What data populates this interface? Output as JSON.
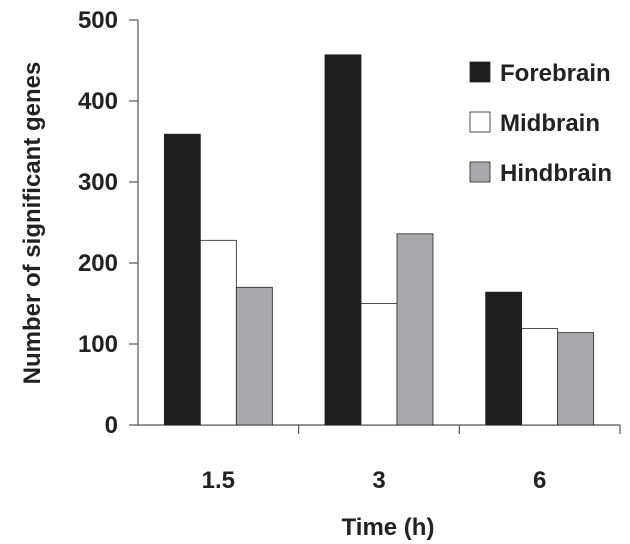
{
  "chart_data": {
    "type": "bar",
    "title": "",
    "xlabel": "Time (h)",
    "ylabel": "Number of significant genes",
    "categories": [
      "1.5",
      "3",
      "6"
    ],
    "ylim": [
      0,
      500
    ],
    "yticks": [
      0,
      100,
      200,
      300,
      400,
      500
    ],
    "grid": false,
    "legend_position": "top-right",
    "series": [
      {
        "name": "Forebrain",
        "color": "#1f1f1f",
        "values": [
          359,
          457,
          164
        ]
      },
      {
        "name": "Midbrain",
        "color": "#ffffff",
        "values": [
          228,
          150,
          119
        ]
      },
      {
        "name": "Hindbrain",
        "color": "#a9a9ab",
        "values": [
          170,
          236,
          114
        ]
      }
    ]
  }
}
